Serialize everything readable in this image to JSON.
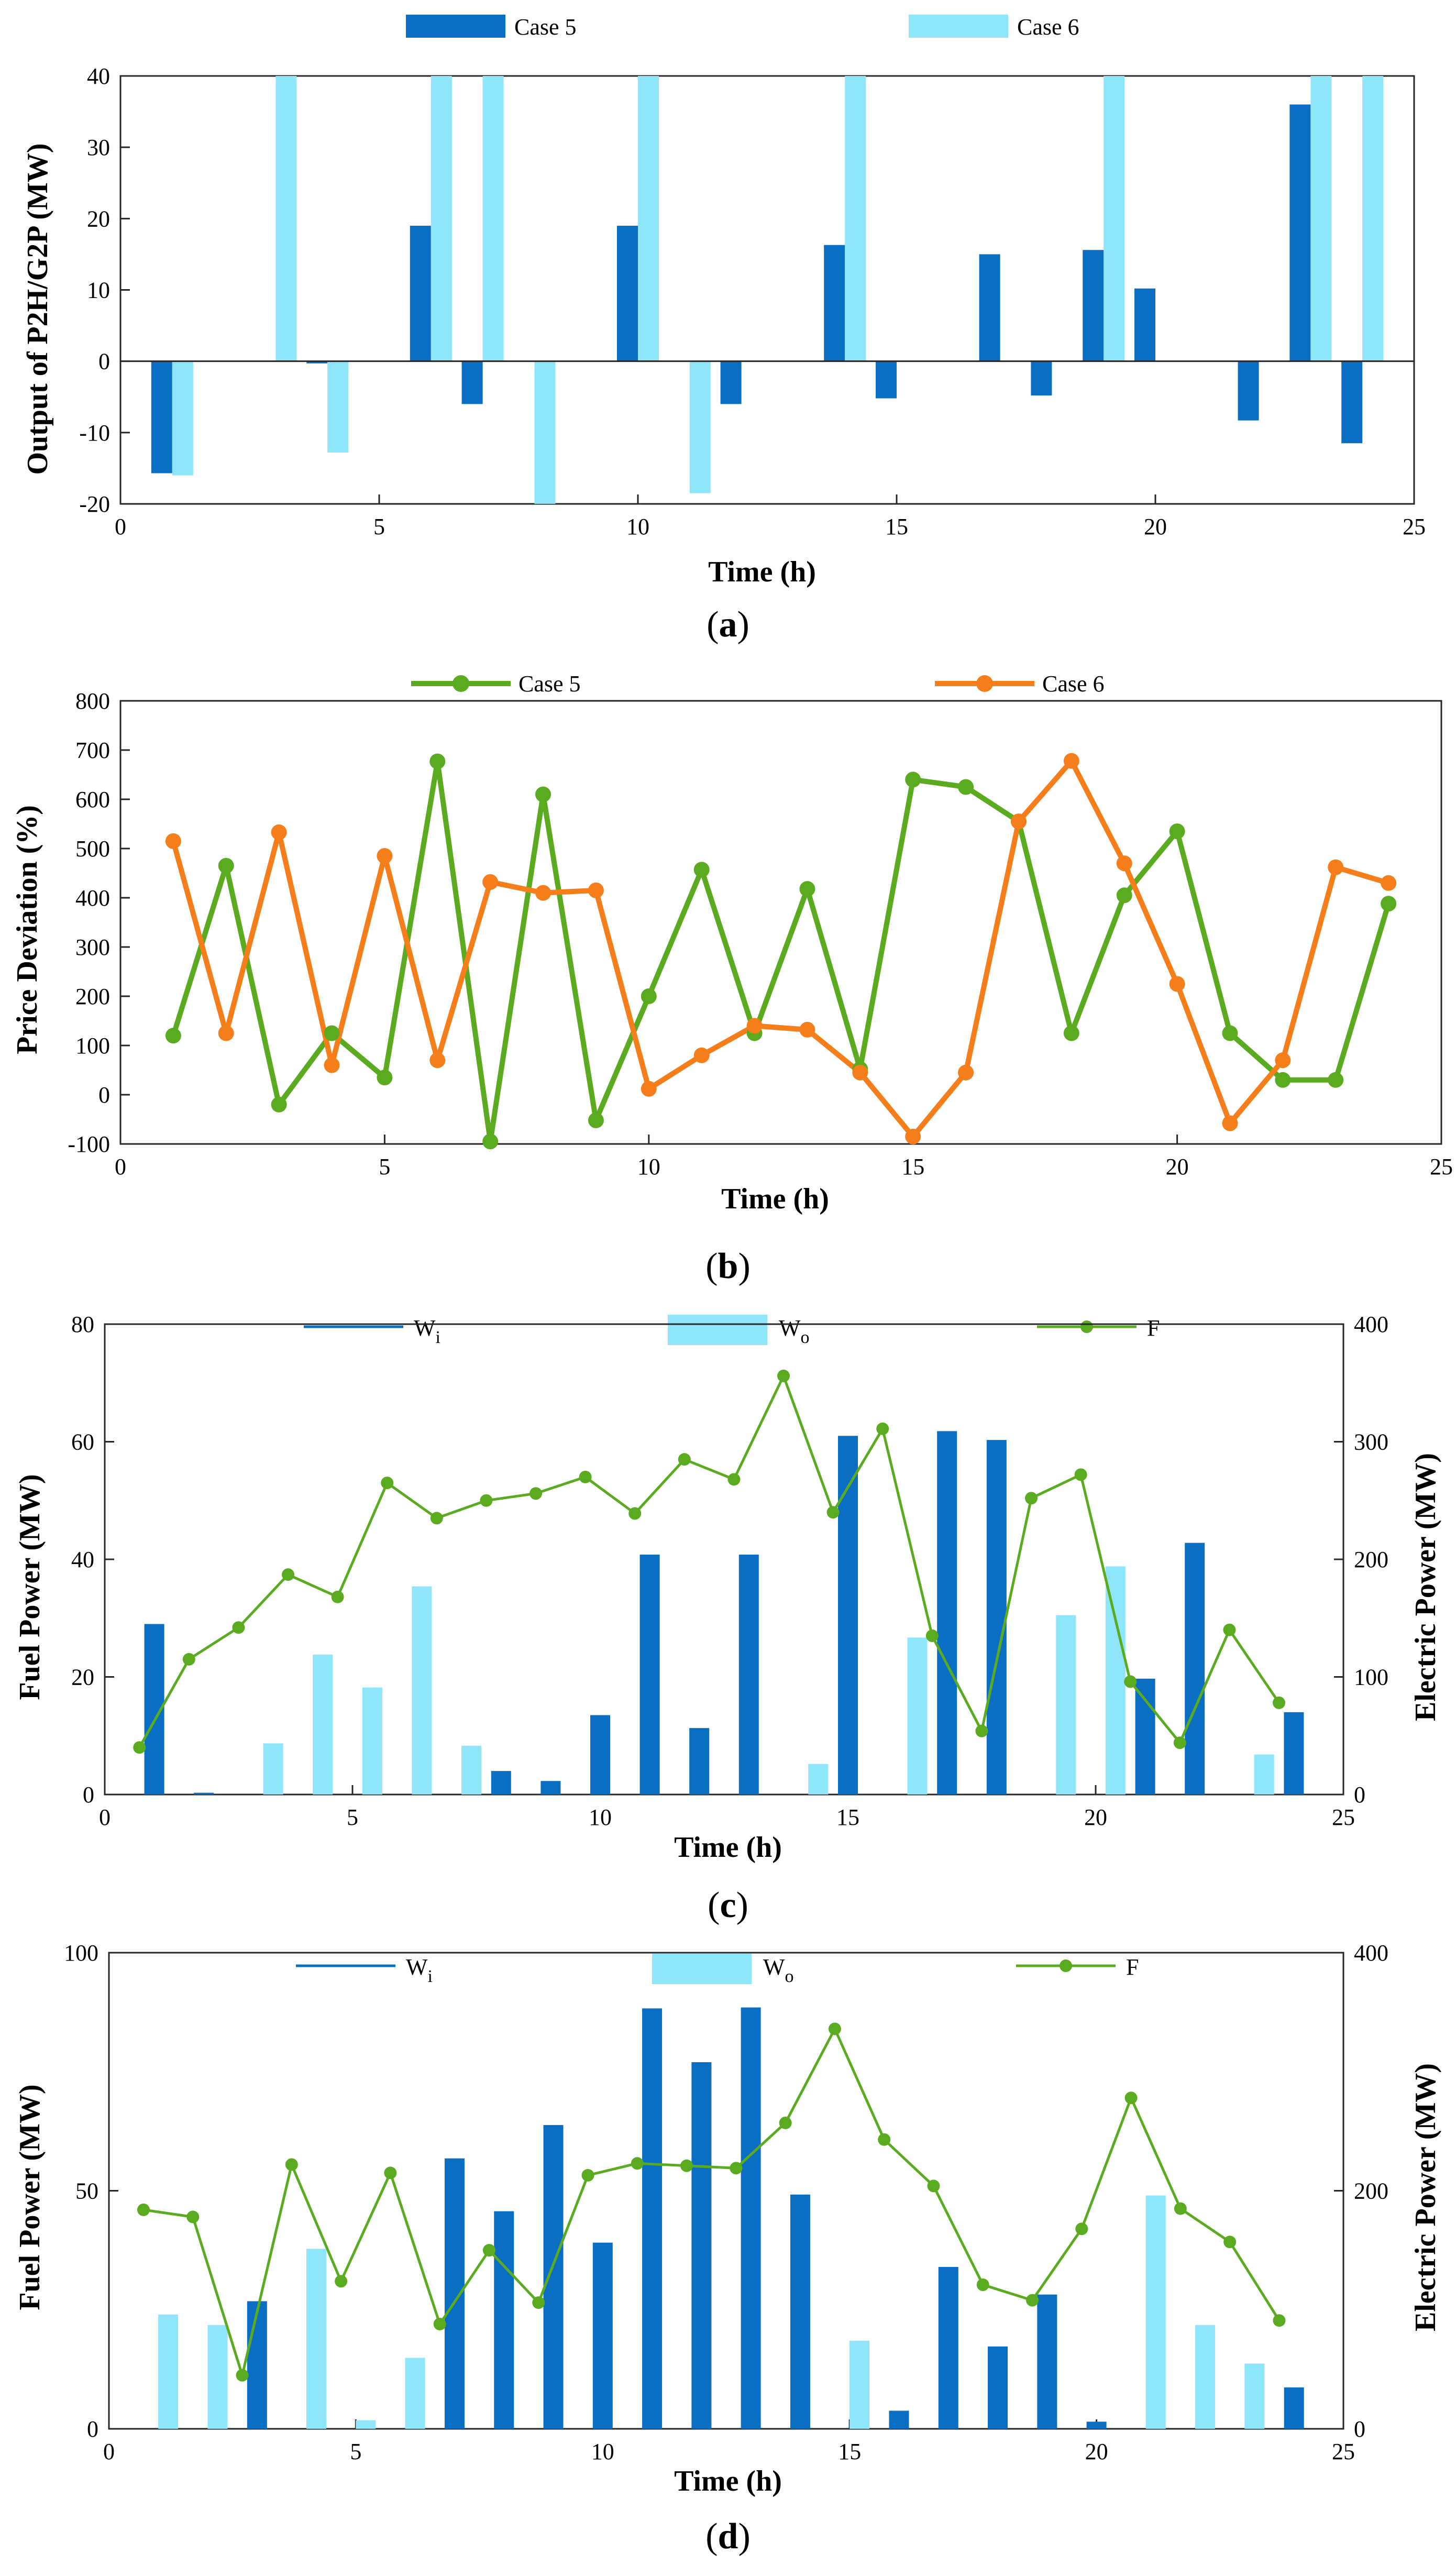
{
  "colors": {
    "case5_bar": "#0a6fc2",
    "case6_bar": "#8fe5fa",
    "case5_line": "#5aab1f",
    "case6_line": "#f57e1a",
    "wi_bar": "#0a6fc2",
    "wo_bar": "#8fe5fa",
    "f_line": "#5aab1f"
  },
  "chart_data": [
    {
      "id": "a",
      "panel_label": "a",
      "type": "bar",
      "xlabel": "Time (h)",
      "ylabel": "Output of P2H/G2P (MW)",
      "xlim": [
        0,
        25
      ],
      "ylim": [
        -20,
        40
      ],
      "xticks": [
        0,
        5,
        10,
        15,
        20,
        25
      ],
      "yticks": [
        -20,
        -10,
        0,
        10,
        20,
        30,
        40
      ],
      "x": [
        1,
        2,
        3,
        4,
        5,
        6,
        7,
        8,
        9,
        10,
        11,
        12,
        13,
        14,
        15,
        16,
        17,
        18,
        19,
        20,
        21,
        22,
        23,
        24
      ],
      "series": [
        {
          "name": "Case 5",
          "values": [
            -15.7,
            0,
            0,
            -0.3,
            0,
            19,
            -6,
            0,
            0,
            19,
            0,
            -6,
            0,
            16.3,
            -5.2,
            0,
            15,
            -4.8,
            15.6,
            10.2,
            0,
            -8.3,
            36,
            -11.5
          ]
        },
        {
          "name": "Case 6",
          "values": [
            -16,
            0,
            40,
            -12.8,
            0,
            40,
            40,
            -20,
            0,
            40,
            -18.5,
            0,
            0,
            40,
            0,
            0,
            0,
            0,
            40,
            0,
            0,
            0,
            40,
            40
          ]
        }
      ],
      "legend": [
        "Case 5",
        "Case 6"
      ],
      "legend_position": "top"
    },
    {
      "id": "b",
      "panel_label": "b",
      "type": "line",
      "xlabel": "Time (h)",
      "ylabel": "Price Deviation (%)",
      "xlim": [
        0,
        25
      ],
      "ylim": [
        -100,
        800
      ],
      "xticks": [
        0,
        5,
        10,
        15,
        20,
        25
      ],
      "yticks": [
        -100,
        0,
        100,
        200,
        300,
        400,
        500,
        600,
        700,
        800
      ],
      "x": [
        1,
        2,
        3,
        4,
        5,
        6,
        7,
        8,
        9,
        10,
        11,
        12,
        13,
        14,
        15,
        16,
        17,
        18,
        19,
        20,
        21,
        22,
        23,
        24
      ],
      "series": [
        {
          "name": "Case 5",
          "values": [
            120,
            465,
            -20,
            125,
            35,
            677,
            -95,
            610,
            -52,
            200,
            457,
            125,
            418,
            52,
            640,
            625,
            555,
            125,
            405,
            535,
            125,
            30,
            30,
            388
          ]
        },
        {
          "name": "Case 6",
          "values": [
            515,
            125,
            533,
            60,
            485,
            70,
            432,
            410,
            415,
            12,
            80,
            140,
            132,
            45,
            -85,
            45,
            555,
            678,
            470,
            225,
            -58,
            70,
            462,
            430
          ]
        }
      ],
      "legend": [
        "Case 5",
        "Case 6"
      ],
      "legend_position": "top"
    },
    {
      "id": "c",
      "panel_label": "c",
      "type": "bar",
      "xlabel": "Time (h)",
      "ylabel_left": "Fuel Power (MW)",
      "ylabel_right": "Electric Power (MW)",
      "xlim": [
        0,
        25
      ],
      "ylim_left": [
        0,
        80
      ],
      "ylim_right": [
        0,
        400
      ],
      "xticks": [
        0,
        5,
        10,
        15,
        20,
        25
      ],
      "yticks_left": [
        0,
        20,
        40,
        60,
        80
      ],
      "yticks_right": [
        0,
        100,
        200,
        300,
        400
      ],
      "legend": [
        "W",
        "W",
        "F"
      ],
      "legend_subscripts": [
        "i",
        "o",
        ""
      ],
      "legend_position": "top",
      "wi": {
        "x": [
          1,
          2,
          3,
          4,
          5,
          6,
          7,
          8,
          9,
          10,
          11,
          12,
          13,
          14,
          15,
          16,
          17,
          18,
          19,
          20,
          21,
          22,
          23,
          24
        ],
        "values": [
          29,
          0.3,
          0,
          0,
          0,
          0,
          0,
          4,
          2.3,
          13.5,
          40.8,
          11.3,
          40.8,
          0,
          61,
          0,
          61.8,
          60.3,
          0,
          0,
          19.7,
          42.8,
          0,
          14
        ]
      },
      "wo": {
        "x": [
          0.8,
          1.8,
          3.4,
          4.4,
          5.4,
          6.4,
          7.4,
          8.4,
          9.4,
          10.4,
          11.4,
          12.4,
          13.4,
          14.4,
          15.4,
          16.4,
          17.4,
          18.4,
          19.4,
          20.4,
          21.4,
          22.4,
          23.4,
          24.4
        ],
        "values": [
          0,
          0,
          8.7,
          23.8,
          18.2,
          35.4,
          8.3,
          0,
          0,
          0,
          0,
          0,
          0,
          5.2,
          0,
          26.7,
          0,
          0,
          30.5,
          38.8,
          0,
          0,
          6.8,
          0
        ]
      },
      "f": {
        "x": [
          0.7,
          1.7,
          2.7,
          3.7,
          4.7,
          5.7,
          6.7,
          7.7,
          8.7,
          9.7,
          10.7,
          11.7,
          12.7,
          13.7,
          14.7,
          15.7,
          16.7,
          17.7,
          18.7,
          19.7,
          20.7,
          21.7,
          22.7,
          23.7
        ],
        "values": [
          40,
          115,
          142,
          187,
          168,
          265,
          235,
          250,
          256,
          270,
          239,
          285,
          268,
          356,
          240,
          311,
          135,
          54,
          252,
          272,
          96,
          44,
          140,
          78
        ]
      }
    },
    {
      "id": "d",
      "panel_label": "d",
      "type": "bar",
      "xlabel": "Time (h)",
      "ylabel_left": "Fuel Power (MW)",
      "ylabel_right": "Electric Power (MW)",
      "xlim": [
        0,
        25
      ],
      "ylim_left": [
        0,
        100
      ],
      "ylim_right": [
        0,
        400
      ],
      "xticks": [
        0,
        5,
        10,
        15,
        20,
        25
      ],
      "yticks_left": [
        0,
        50,
        100
      ],
      "yticks_right": [
        0,
        200,
        400
      ],
      "legend": [
        "W",
        "W",
        "F"
      ],
      "legend_subscripts": [
        "i",
        "o",
        ""
      ],
      "legend_position": "top",
      "wi": {
        "x": [
          3,
          7,
          8,
          9,
          10,
          11,
          12,
          13,
          14,
          16,
          17,
          18,
          19,
          20,
          24
        ],
        "values": [
          26.8,
          56.8,
          45.7,
          63.8,
          39.1,
          88.3,
          77,
          88.5,
          49.2,
          3.8,
          34,
          17.3,
          28.2,
          1.5,
          8.7
        ]
      },
      "wo": {
        "x": [
          1.2,
          2.2,
          4.2,
          5.2,
          6.2,
          15.2,
          21.2,
          22.2,
          23.2
        ],
        "values": [
          24,
          21.8,
          37.8,
          1.8,
          14.9,
          18.5,
          49,
          21.8,
          13.7
        ]
      },
      "f": {
        "x": [
          0.7,
          1.7,
          2.7,
          3.7,
          4.7,
          5.7,
          6.7,
          7.7,
          8.7,
          9.7,
          10.7,
          11.7,
          12.7,
          13.7,
          14.7,
          15.7,
          16.7,
          17.7,
          18.7,
          19.7,
          20.7,
          21.7,
          22.7,
          23.7
        ],
        "values": [
          184,
          178,
          45,
          222,
          124,
          215,
          88,
          150,
          106,
          213,
          223,
          221,
          219,
          257,
          336,
          243,
          204,
          121,
          108,
          168,
          278,
          185,
          157,
          91
        ]
      }
    }
  ]
}
